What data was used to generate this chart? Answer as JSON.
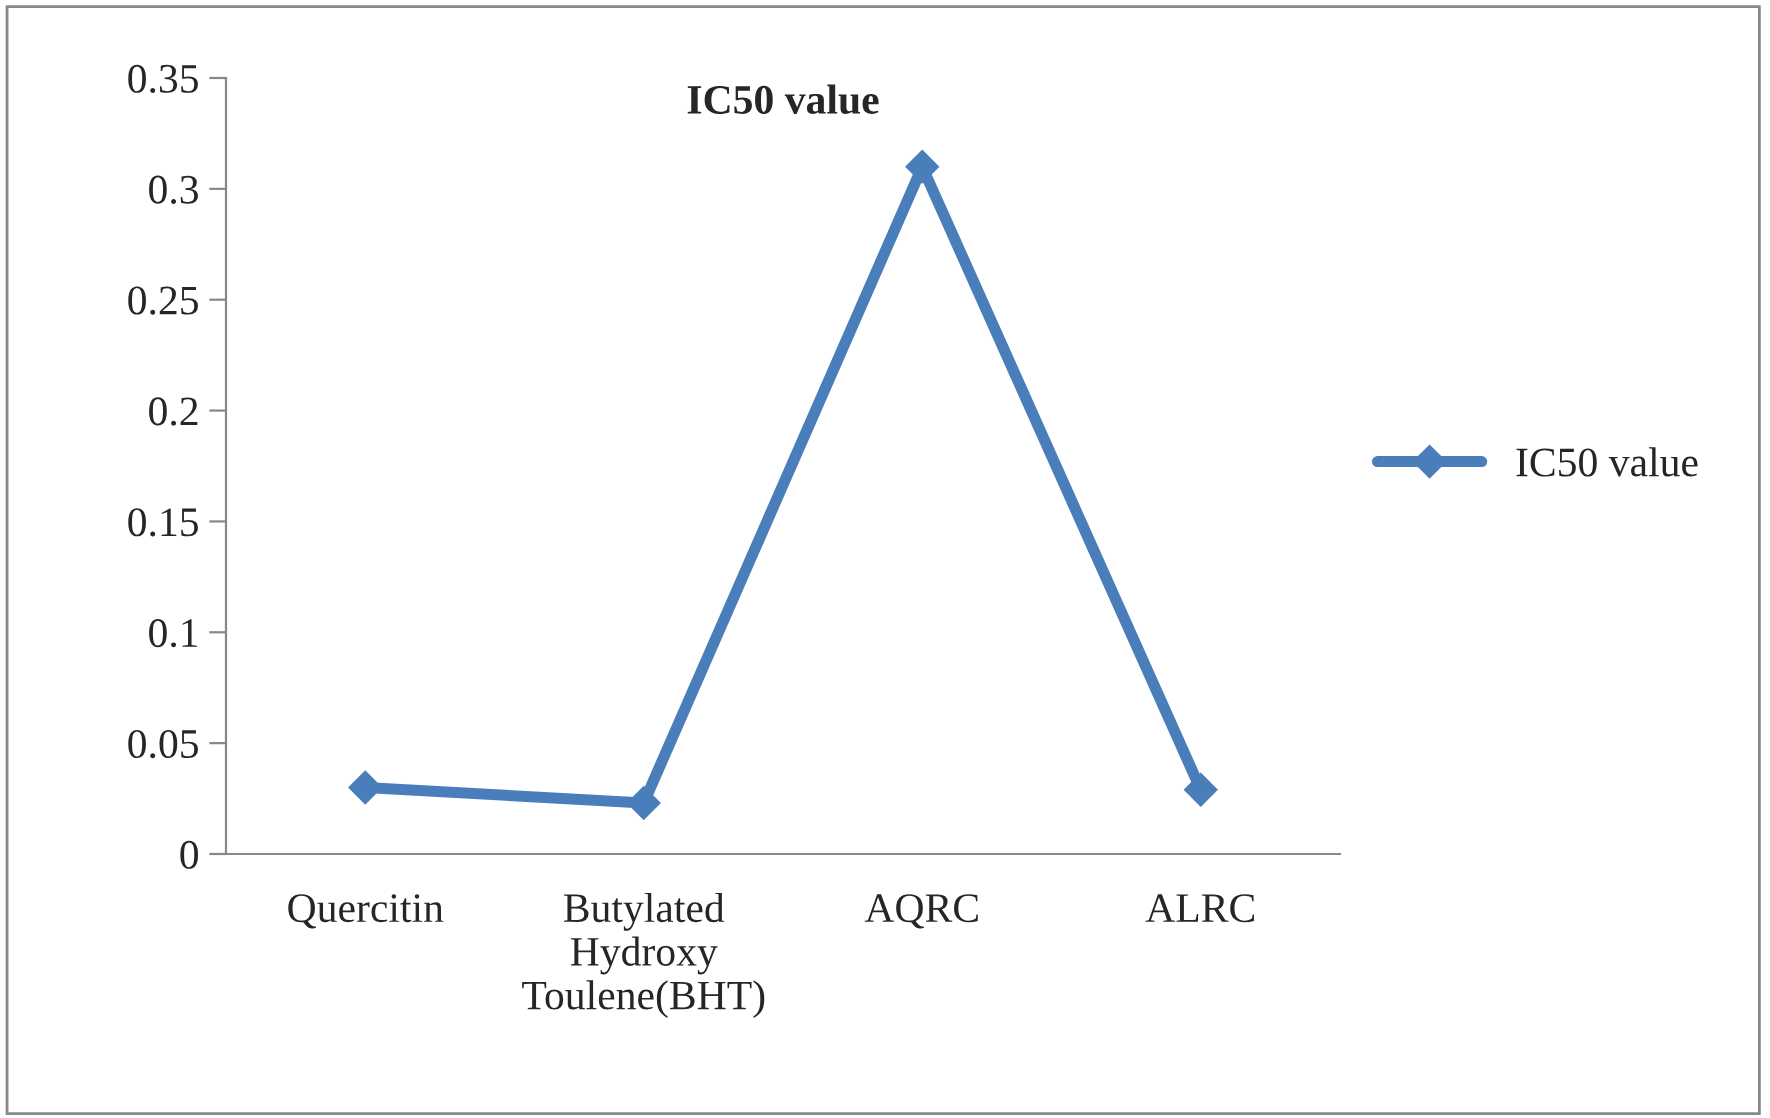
{
  "chart_data": {
    "type": "line",
    "title": "IC50 value",
    "categories": [
      "Quercitin",
      "Butylated Hydroxy Toulene(BHT)",
      "AQRC",
      "ALRC"
    ],
    "series": [
      {
        "name": "IC50 value",
        "color": "#4a7ebb",
        "values": [
          0.03,
          0.023,
          0.31,
          0.029
        ]
      }
    ],
    "ylim": [
      0,
      0.35
    ],
    "yticks": [
      0,
      0.05,
      0.1,
      0.15,
      0.2,
      0.25,
      0.3,
      0.35
    ],
    "marker": "diamond",
    "line_style": "solid",
    "legend": "right",
    "grid": false
  }
}
